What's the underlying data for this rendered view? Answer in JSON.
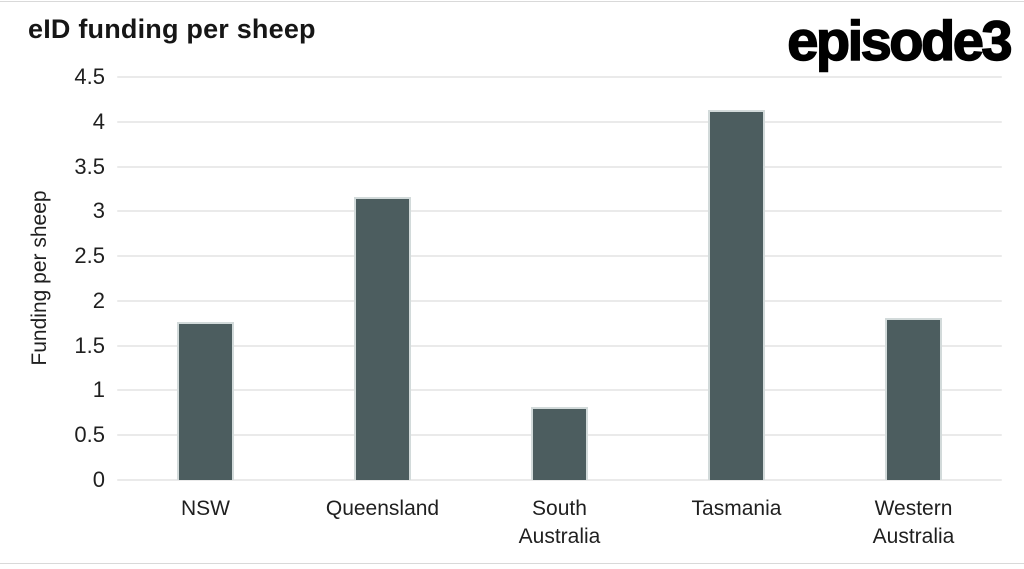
{
  "header": {
    "title": "eID funding per sheep",
    "logo": "episode3"
  },
  "chart_data": {
    "type": "bar",
    "title": "eID funding per sheep",
    "categories": [
      "NSW",
      "Queensland",
      "South Australia",
      "Tasmania",
      "Western Australia"
    ],
    "category_display": [
      "NSW",
      "Queensland",
      "South\nAustralia",
      "Tasmania",
      "Western\nAustralia"
    ],
    "values": [
      1.76,
      3.16,
      0.81,
      4.13,
      1.81
    ],
    "xlabel": "",
    "ylabel": "Funding per sheep",
    "ylim": [
      0,
      4.5
    ],
    "ytick_step": 0.5,
    "yticks": [
      "0",
      "0.5",
      "1",
      "1.5",
      "2",
      "2.5",
      "3",
      "3.5",
      "4",
      "4.5"
    ],
    "grid": true,
    "legend": false,
    "colors": {
      "bar_fill": "#4c5d5f",
      "bar_stroke": "#d2dada",
      "gridline": "#eaeaea",
      "text": "#1f1f1f",
      "card_border": "#d9d9d9"
    }
  }
}
